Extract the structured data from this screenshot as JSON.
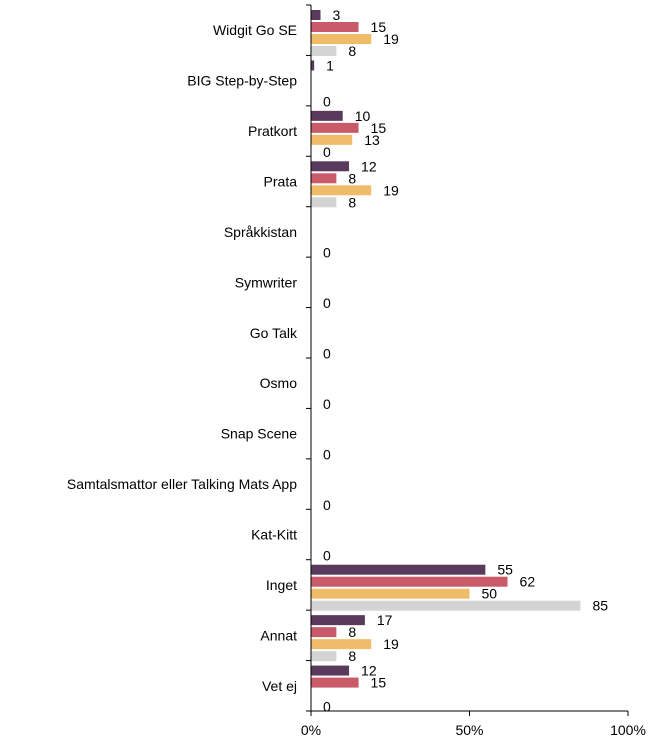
{
  "chart_data": {
    "type": "bar",
    "orientation": "horizontal",
    "categories": [
      "Widgit Go SE",
      "BIG Step-by-Step",
      "Pratkort",
      "Prata",
      "Språkkistan",
      "Symwriter",
      "Go Talk",
      "Osmo",
      "Snap Scene",
      "Samtalsmattor eller Talking Mats App",
      "Kat-Kitt",
      "Inget",
      "Annat",
      "Vet ej"
    ],
    "series": [
      {
        "color": "#5a3a5c",
        "values": [
          3,
          1,
          10,
          12,
          null,
          null,
          null,
          null,
          null,
          null,
          null,
          55,
          17,
          12
        ]
      },
      {
        "color": "#c85a6a",
        "values": [
          15,
          null,
          15,
          8,
          null,
          null,
          null,
          null,
          null,
          null,
          null,
          62,
          8,
          15
        ]
      },
      {
        "color": "#f0bc6a",
        "values": [
          19,
          null,
          13,
          19,
          null,
          null,
          null,
          null,
          null,
          null,
          null,
          50,
          19,
          null
        ]
      },
      {
        "color": "#d4d4d4",
        "values": [
          8,
          0,
          0,
          8,
          0,
          0,
          0,
          0,
          0,
          0,
          0,
          85,
          8,
          0
        ]
      }
    ],
    "x_ticks": [
      "0%",
      "50%",
      "100%"
    ],
    "xlim": [
      0,
      100
    ],
    "grid": false,
    "legend": "none"
  }
}
